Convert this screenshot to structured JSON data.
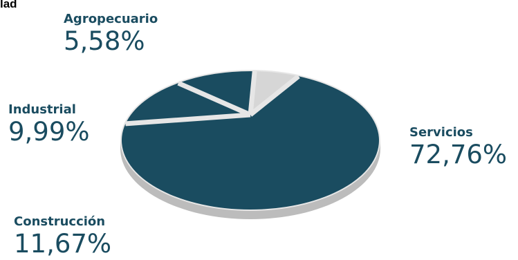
{
  "title_fragment": "lad",
  "colors": {
    "slice_dark": "#1a4c60",
    "slice_light": "#d6d6d6",
    "rim": "#bcbcbc",
    "separator": "#e6e6e6",
    "label": "#1a4c60"
  },
  "chart_data": {
    "type": "pie",
    "title": "",
    "categories": [
      "Servicios",
      "Construcción",
      "Industrial",
      "Agropecuario"
    ],
    "values": [
      72.76,
      11.67,
      9.99,
      5.58
    ],
    "value_labels": [
      "72,76%",
      "11,67%",
      "9,99%",
      "5,58%"
    ],
    "slice_colors": [
      "#1a4c60",
      "#1a4c60",
      "#1a4c60",
      "#d6d6d6"
    ],
    "style": "3d-tilted",
    "legend": "none"
  }
}
